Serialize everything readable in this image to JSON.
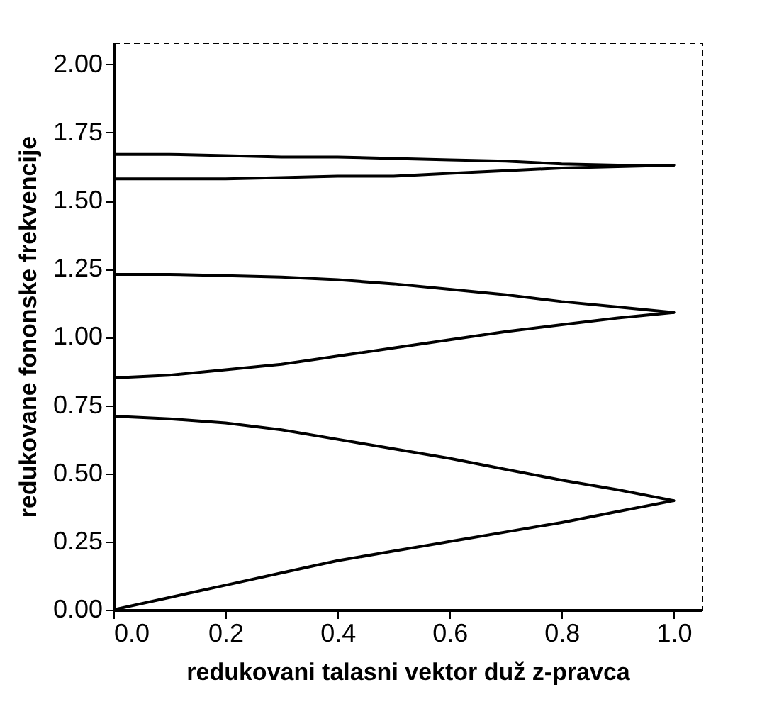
{
  "chart_data": {
    "type": "line",
    "xlabel": "redukovani talasni vektor duž z-pravca",
    "ylabel": "redukovane fononske frekvencije",
    "x": [
      0,
      0.1,
      0.2,
      0.3,
      0.4,
      0.5,
      0.6,
      0.7,
      0.8,
      0.9,
      1.0
    ],
    "series": [
      {
        "color": "#000000",
        "values": [
          0,
          0.045,
          0.09,
          0.135,
          0.18,
          0.215,
          0.25,
          0.285,
          0.32,
          0.36,
          0.4
        ]
      },
      {
        "color": "#000000",
        "values": [
          0.71,
          0.7,
          0.685,
          0.66,
          0.625,
          0.59,
          0.555,
          0.515,
          0.475,
          0.44,
          0.4
        ]
      },
      {
        "color": "#000000",
        "values": [
          0.85,
          0.86,
          0.88,
          0.9,
          0.93,
          0.96,
          0.99,
          1.02,
          1.045,
          1.07,
          1.09
        ]
      },
      {
        "color": "#000000",
        "values": [
          1.23,
          1.23,
          1.225,
          1.22,
          1.21,
          1.195,
          1.175,
          1.155,
          1.13,
          1.11,
          1.09
        ]
      },
      {
        "color": "#000000",
        "values": [
          1.67,
          1.67,
          1.665,
          1.66,
          1.66,
          1.655,
          1.65,
          1.645,
          1.635,
          1.63,
          1.63
        ]
      },
      {
        "color": "#000000",
        "values": [
          1.58,
          1.58,
          1.58,
          1.585,
          1.59,
          1.59,
          1.6,
          1.61,
          1.62,
          1.625,
          1.63
        ]
      }
    ],
    "xlim": [
      0,
      1.05
    ],
    "ylim": [
      0,
      2.08
    ],
    "xticks": [
      {
        "value": 0,
        "label": "0.0"
      },
      {
        "value": 0.2,
        "label": "0.2"
      },
      {
        "value": 0.4,
        "label": "0.4"
      },
      {
        "value": 0.6,
        "label": "0.6"
      },
      {
        "value": 0.8,
        "label": "0.8"
      },
      {
        "value": 1,
        "label": "1.0"
      }
    ],
    "yticks": [
      {
        "value": 0,
        "label": "0.00"
      },
      {
        "value": 0.25,
        "label": "0.25"
      },
      {
        "value": 0.5,
        "label": "0.50"
      },
      {
        "value": 0.75,
        "label": "0.75"
      },
      {
        "value": 1,
        "label": "1.00"
      },
      {
        "value": 1.25,
        "label": "1.25"
      },
      {
        "value": 1.5,
        "label": "1.50"
      },
      {
        "value": 1.75,
        "label": "1.75"
      },
      {
        "value": 2,
        "label": "2.00"
      }
    ],
    "grid": false,
    "legend": false,
    "line_style": "solid",
    "marker": "none"
  }
}
